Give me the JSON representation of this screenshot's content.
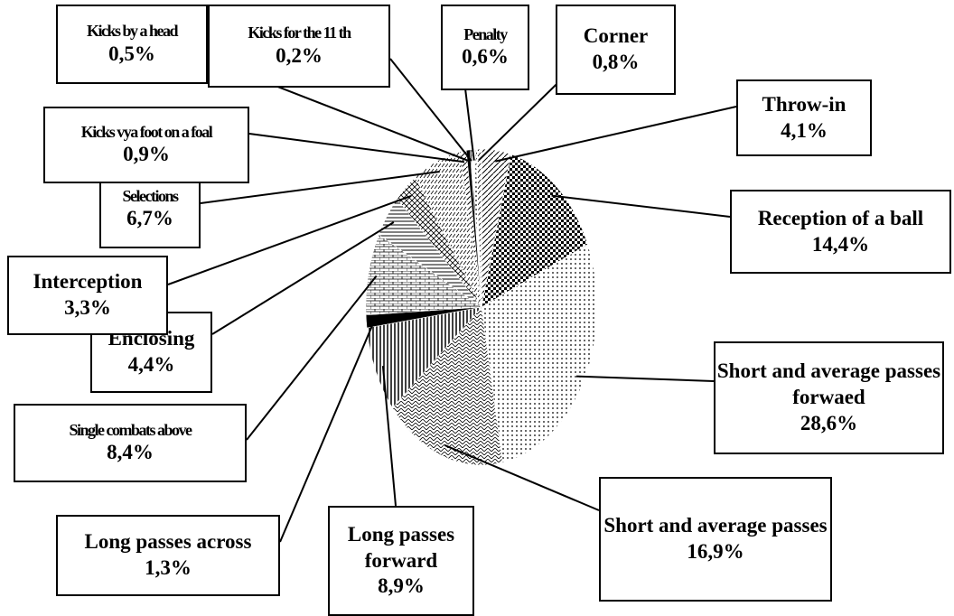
{
  "chart_data": {
    "type": "pie",
    "categories": [
      "Throw-in",
      "Reception of a ball",
      "Short and average passes forwaed",
      "Short and average passes",
      "Long passes forward",
      "Long passes across",
      "Single combats above",
      "Enclosing",
      "Interception",
      "Selections",
      "Kicks vya foot on a foal",
      "Kicks by a head",
      "Kicks for the 11 th",
      "Penalty",
      "Corner"
    ],
    "values": [
      4.1,
      14.4,
      28.6,
      16.9,
      8.9,
      1.3,
      8.4,
      4.4,
      3.3,
      6.7,
      0.9,
      0.5,
      0.2,
      0.6,
      0.8
    ],
    "value_labels": [
      "4,1%",
      "14,4%",
      "28,6%",
      "16,9%",
      "8,9%",
      "1,3%",
      "8,4%",
      "4,4%",
      "3,3%",
      "6,7%",
      "0,9%",
      "0,5%",
      "0,2%",
      "0,6%",
      "0,8%"
    ]
  }
}
